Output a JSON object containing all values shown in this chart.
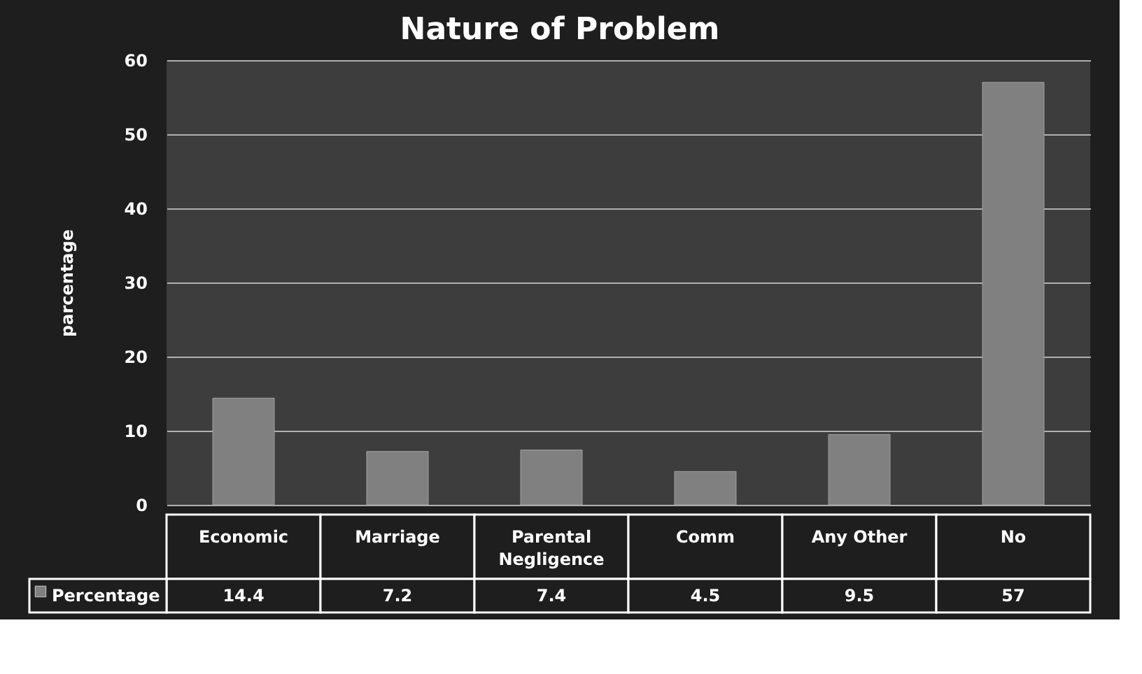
{
  "chart_data": {
    "type": "bar",
    "title": "Nature of Problem",
    "ylabel": "parcentage",
    "categories": [
      "Economic",
      "Marriage",
      "Parental Negligence",
      "Comm",
      "Any Other",
      "No"
    ],
    "series": [
      {
        "name": "Percentage",
        "color": "#808080",
        "values": [
          14.4,
          7.2,
          7.4,
          4.5,
          9.5,
          57
        ]
      }
    ],
    "ylim": [
      0,
      60
    ],
    "yticks": [
      0,
      10,
      20,
      30,
      40,
      50,
      60
    ],
    "grid": "y",
    "data_labels": true,
    "legend": "bottom left"
  }
}
